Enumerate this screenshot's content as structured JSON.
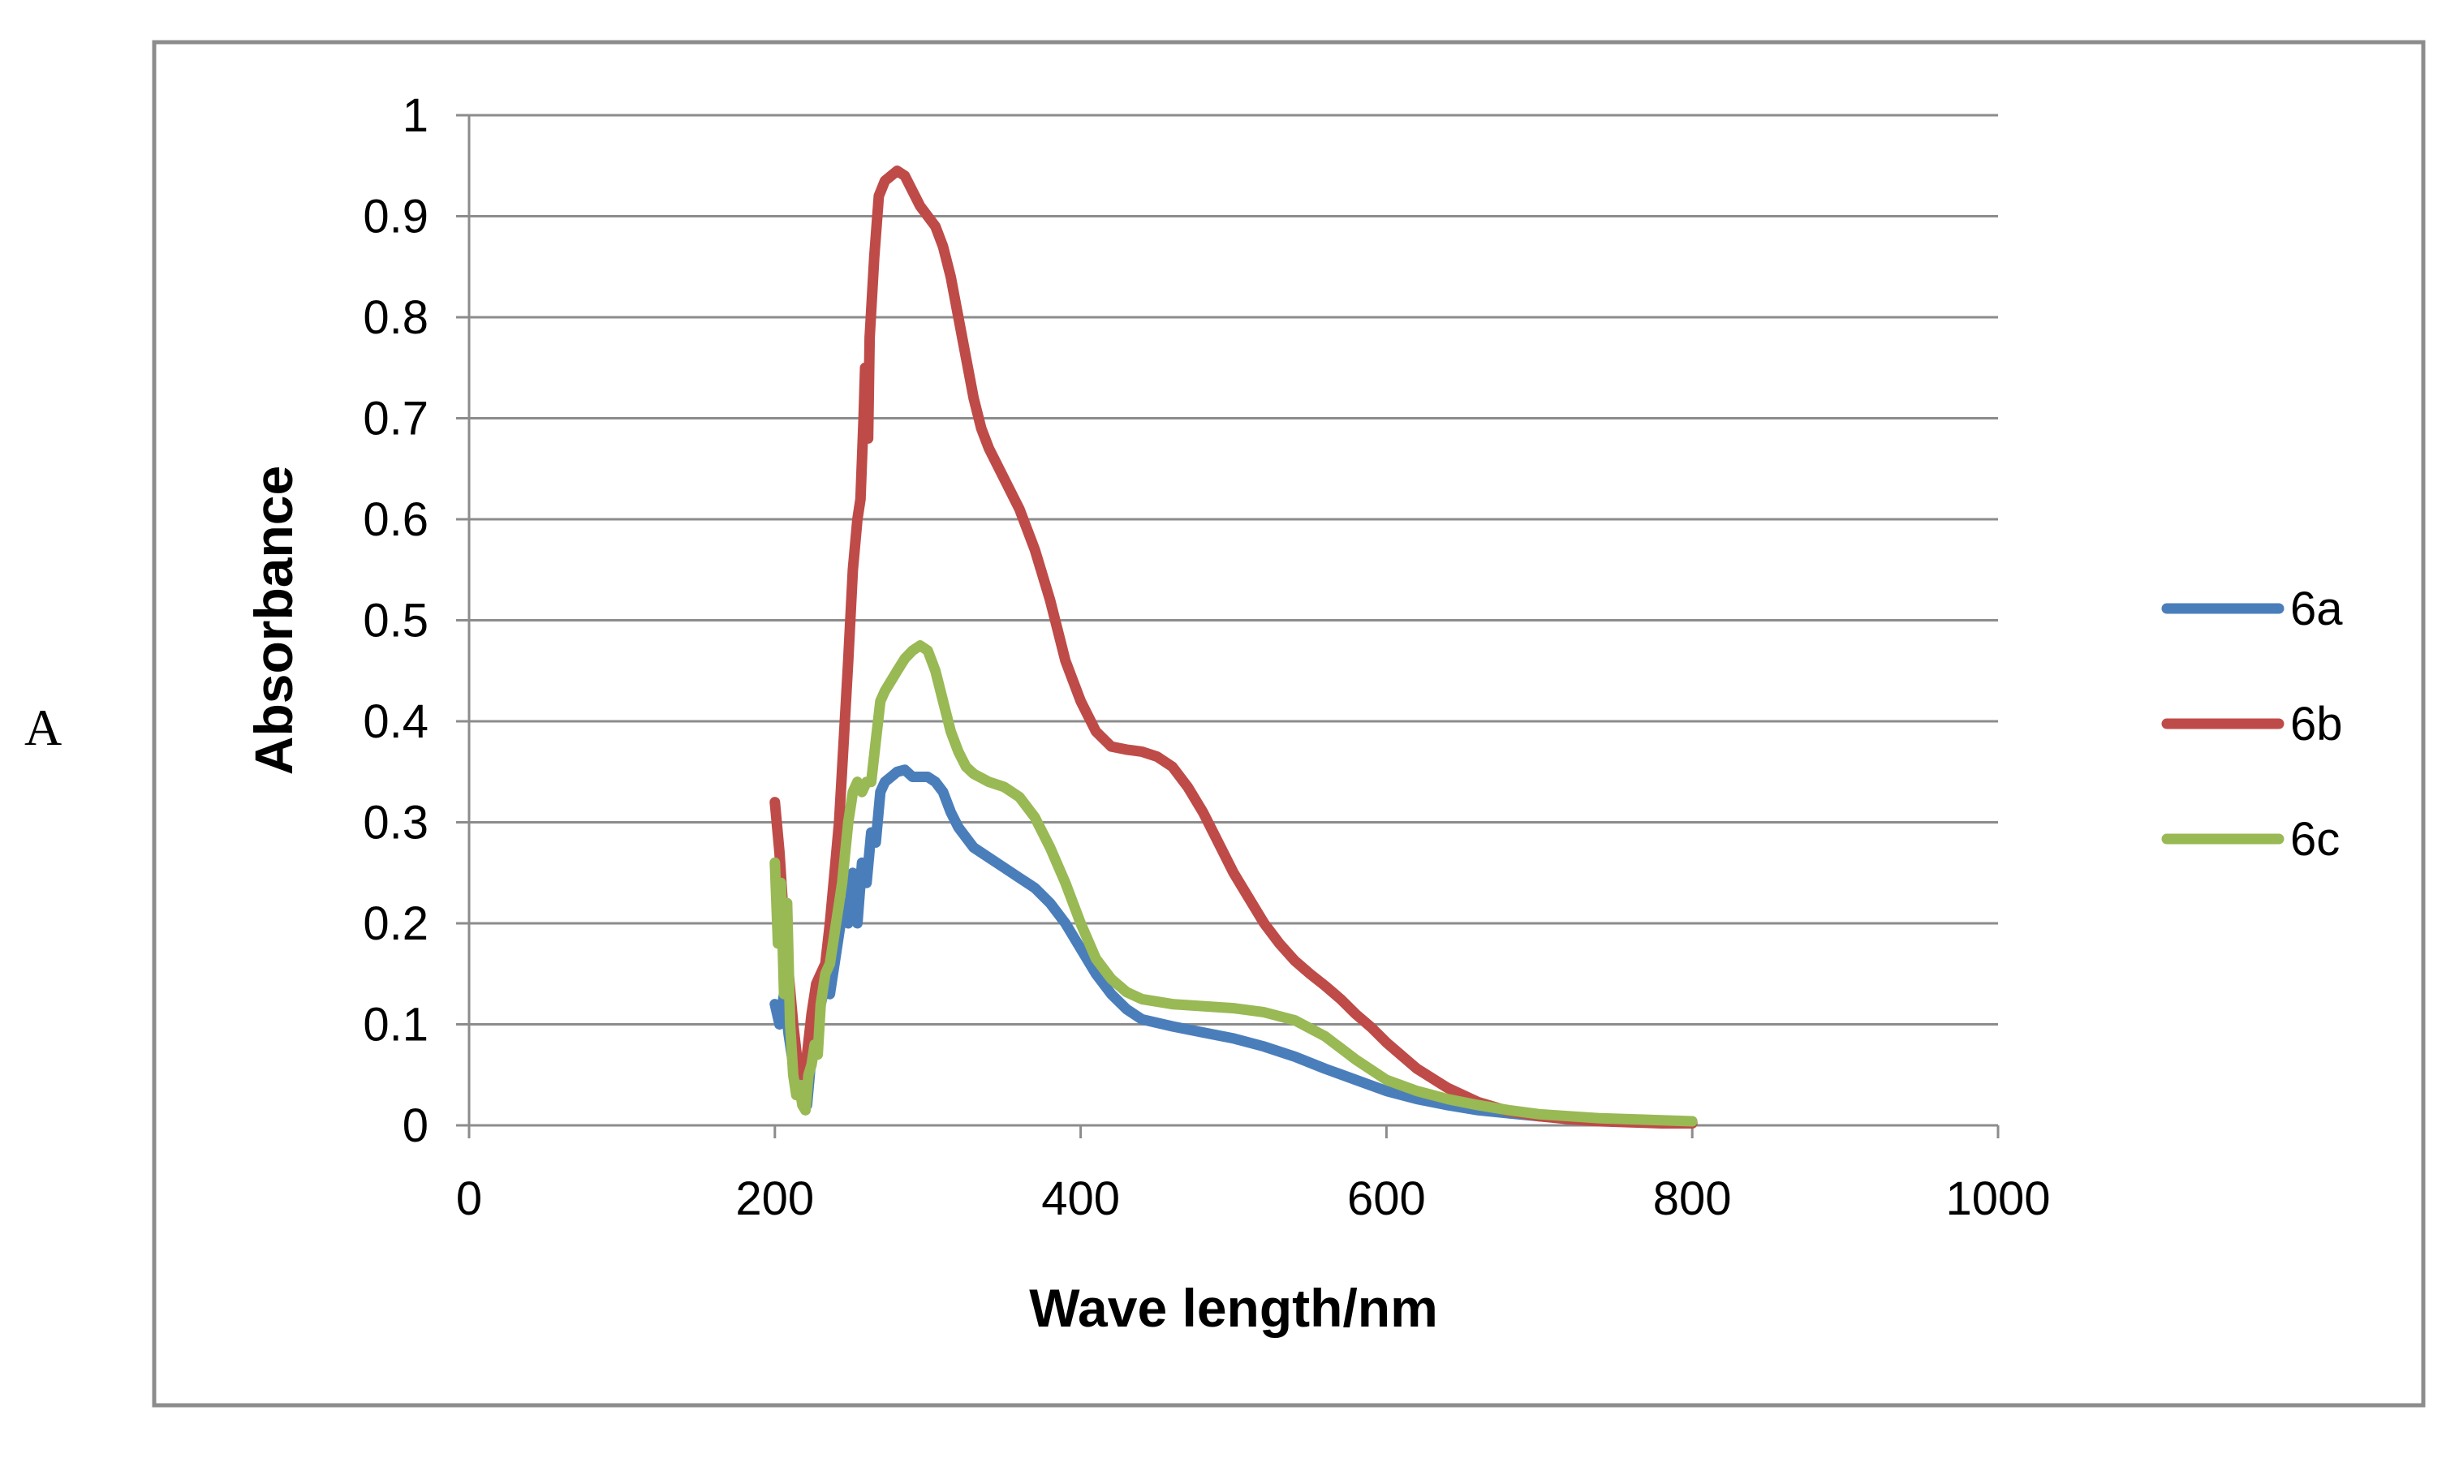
{
  "panel_label": "A",
  "chart_data": {
    "type": "line",
    "title": "",
    "xlabel": "Wave length/nm",
    "ylabel": "Absorbance",
    "xlim": [
      0,
      1000
    ],
    "ylim": [
      0,
      1
    ],
    "x_ticks": [
      "0",
      "200",
      "400",
      "600",
      "800",
      "1000"
    ],
    "y_ticks": [
      "0",
      "0.1",
      "0.2",
      "0.3",
      "0.4",
      "0.5",
      "0.6",
      "0.7",
      "0.8",
      "0.9",
      "1"
    ],
    "grid": true,
    "legend": "right",
    "series": [
      {
        "name": "6a",
        "color": "#4a7ebb",
        "points": [
          [
            200,
            0.12
          ],
          [
            203,
            0.1
          ],
          [
            206,
            0.13
          ],
          [
            209,
            0.09
          ],
          [
            212,
            0.06
          ],
          [
            215,
            0.04
          ],
          [
            218,
            0.03
          ],
          [
            221,
            0.02
          ],
          [
            224,
            0.07
          ],
          [
            227,
            0.1
          ],
          [
            230,
            0.12
          ],
          [
            233,
            0.14
          ],
          [
            236,
            0.13
          ],
          [
            239,
            0.16
          ],
          [
            242,
            0.19
          ],
          [
            245,
            0.22
          ],
          [
            248,
            0.2
          ],
          [
            251,
            0.25
          ],
          [
            254,
            0.2
          ],
          [
            257,
            0.26
          ],
          [
            260,
            0.24
          ],
          [
            263,
            0.29
          ],
          [
            266,
            0.28
          ],
          [
            269,
            0.33
          ],
          [
            272,
            0.34
          ],
          [
            276,
            0.345
          ],
          [
            280,
            0.35
          ],
          [
            285,
            0.352
          ],
          [
            290,
            0.345
          ],
          [
            295,
            0.345
          ],
          [
            300,
            0.345
          ],
          [
            305,
            0.34
          ],
          [
            310,
            0.33
          ],
          [
            315,
            0.31
          ],
          [
            320,
            0.295
          ],
          [
            325,
            0.285
          ],
          [
            330,
            0.275
          ],
          [
            340,
            0.265
          ],
          [
            350,
            0.255
          ],
          [
            360,
            0.245
          ],
          [
            370,
            0.235
          ],
          [
            380,
            0.22
          ],
          [
            390,
            0.2
          ],
          [
            400,
            0.175
          ],
          [
            410,
            0.15
          ],
          [
            420,
            0.13
          ],
          [
            430,
            0.115
          ],
          [
            440,
            0.105
          ],
          [
            460,
            0.098
          ],
          [
            480,
            0.092
          ],
          [
            500,
            0.086
          ],
          [
            520,
            0.078
          ],
          [
            540,
            0.068
          ],
          [
            560,
            0.056
          ],
          [
            580,
            0.045
          ],
          [
            600,
            0.034
          ],
          [
            620,
            0.026
          ],
          [
            640,
            0.02
          ],
          [
            660,
            0.015
          ],
          [
            680,
            0.012
          ],
          [
            700,
            0.009
          ],
          [
            720,
            0.007
          ],
          [
            740,
            0.006
          ],
          [
            760,
            0.005
          ],
          [
            780,
            0.004
          ],
          [
            800,
            0.003
          ]
        ]
      },
      {
        "name": "6b",
        "color": "#be4b48",
        "points": [
          [
            200,
            0.32
          ],
          [
            203,
            0.27
          ],
          [
            206,
            0.2
          ],
          [
            209,
            0.15
          ],
          [
            212,
            0.1
          ],
          [
            215,
            0.06
          ],
          [
            218,
            0.05
          ],
          [
            221,
            0.07
          ],
          [
            224,
            0.11
          ],
          [
            227,
            0.14
          ],
          [
            230,
            0.15
          ],
          [
            233,
            0.16
          ],
          [
            236,
            0.2
          ],
          [
            239,
            0.25
          ],
          [
            242,
            0.3
          ],
          [
            245,
            0.38
          ],
          [
            248,
            0.46
          ],
          [
            251,
            0.55
          ],
          [
            254,
            0.6
          ],
          [
            256,
            0.62
          ],
          [
            258,
            0.7
          ],
          [
            259,
            0.75
          ],
          [
            260,
            0.72
          ],
          [
            261,
            0.68
          ],
          [
            262,
            0.78
          ],
          [
            265,
            0.86
          ],
          [
            268,
            0.92
          ],
          [
            272,
            0.935
          ],
          [
            276,
            0.94
          ],
          [
            280,
            0.945
          ],
          [
            285,
            0.94
          ],
          [
            290,
            0.925
          ],
          [
            295,
            0.91
          ],
          [
            300,
            0.9
          ],
          [
            305,
            0.89
          ],
          [
            310,
            0.87
          ],
          [
            315,
            0.84
          ],
          [
            320,
            0.8
          ],
          [
            325,
            0.76
          ],
          [
            330,
            0.72
          ],
          [
            335,
            0.69
          ],
          [
            340,
            0.67
          ],
          [
            350,
            0.64
          ],
          [
            360,
            0.61
          ],
          [
            370,
            0.57
          ],
          [
            380,
            0.52
          ],
          [
            390,
            0.46
          ],
          [
            400,
            0.42
          ],
          [
            410,
            0.39
          ],
          [
            420,
            0.375
          ],
          [
            430,
            0.372
          ],
          [
            440,
            0.37
          ],
          [
            450,
            0.365
          ],
          [
            460,
            0.355
          ],
          [
            470,
            0.335
          ],
          [
            480,
            0.31
          ],
          [
            490,
            0.28
          ],
          [
            500,
            0.25
          ],
          [
            510,
            0.225
          ],
          [
            520,
            0.2
          ],
          [
            530,
            0.18
          ],
          [
            540,
            0.163
          ],
          [
            550,
            0.15
          ],
          [
            560,
            0.138
          ],
          [
            570,
            0.125
          ],
          [
            580,
            0.11
          ],
          [
            590,
            0.097
          ],
          [
            600,
            0.082
          ],
          [
            620,
            0.056
          ],
          [
            640,
            0.037
          ],
          [
            660,
            0.023
          ],
          [
            680,
            0.014
          ],
          [
            700,
            0.009
          ],
          [
            720,
            0.006
          ],
          [
            740,
            0.004
          ],
          [
            760,
            0.003
          ],
          [
            780,
            0.002
          ],
          [
            800,
            0.002
          ]
        ]
      },
      {
        "name": "6c",
        "color": "#98b954",
        "points": [
          [
            200,
            0.26
          ],
          [
            202,
            0.18
          ],
          [
            204,
            0.24
          ],
          [
            206,
            0.13
          ],
          [
            208,
            0.22
          ],
          [
            210,
            0.1
          ],
          [
            212,
            0.05
          ],
          [
            214,
            0.03
          ],
          [
            216,
            0.04
          ],
          [
            218,
            0.02
          ],
          [
            220,
            0.015
          ],
          [
            222,
            0.05
          ],
          [
            224,
            0.06
          ],
          [
            226,
            0.08
          ],
          [
            228,
            0.07
          ],
          [
            230,
            0.12
          ],
          [
            233,
            0.15
          ],
          [
            236,
            0.16
          ],
          [
            240,
            0.2
          ],
          [
            244,
            0.24
          ],
          [
            248,
            0.3
          ],
          [
            251,
            0.33
          ],
          [
            254,
            0.34
          ],
          [
            257,
            0.33
          ],
          [
            260,
            0.34
          ],
          [
            263,
            0.34
          ],
          [
            266,
            0.38
          ],
          [
            269,
            0.42
          ],
          [
            272,
            0.43
          ],
          [
            276,
            0.44
          ],
          [
            280,
            0.45
          ],
          [
            285,
            0.462
          ],
          [
            290,
            0.47
          ],
          [
            295,
            0.475
          ],
          [
            300,
            0.47
          ],
          [
            305,
            0.45
          ],
          [
            310,
            0.42
          ],
          [
            315,
            0.39
          ],
          [
            320,
            0.37
          ],
          [
            325,
            0.355
          ],
          [
            330,
            0.348
          ],
          [
            340,
            0.34
          ],
          [
            350,
            0.335
          ],
          [
            360,
            0.325
          ],
          [
            370,
            0.305
          ],
          [
            380,
            0.275
          ],
          [
            390,
            0.24
          ],
          [
            400,
            0.2
          ],
          [
            410,
            0.165
          ],
          [
            420,
            0.145
          ],
          [
            430,
            0.132
          ],
          [
            440,
            0.125
          ],
          [
            460,
            0.12
          ],
          [
            480,
            0.118
          ],
          [
            500,
            0.116
          ],
          [
            520,
            0.112
          ],
          [
            540,
            0.104
          ],
          [
            560,
            0.088
          ],
          [
            580,
            0.065
          ],
          [
            600,
            0.045
          ],
          [
            620,
            0.034
          ],
          [
            640,
            0.026
          ],
          [
            660,
            0.02
          ],
          [
            680,
            0.015
          ],
          [
            700,
            0.011
          ],
          [
            720,
            0.009
          ],
          [
            740,
            0.007
          ],
          [
            760,
            0.006
          ],
          [
            780,
            0.005
          ],
          [
            800,
            0.004
          ]
        ]
      }
    ]
  }
}
